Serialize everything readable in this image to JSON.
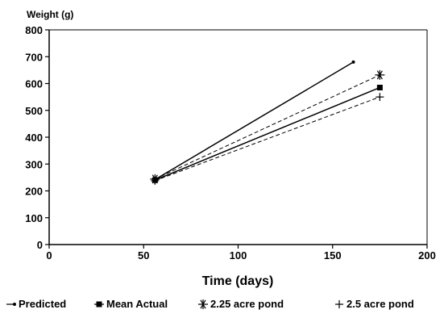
{
  "chart_data": {
    "type": "line",
    "title": "",
    "ylabel": "Weight (g)",
    "xlabel": "Time (days)",
    "xlim": [
      0,
      200
    ],
    "ylim": [
      0,
      800
    ],
    "xticks": [
      0,
      50,
      100,
      150,
      200
    ],
    "yticks": [
      0,
      100,
      200,
      300,
      400,
      500,
      600,
      700,
      800
    ],
    "grid": false,
    "legend_position": "bottom",
    "series": [
      {
        "name": "Predicted",
        "x": [
          56,
          161
        ],
        "y": [
          242,
          680
        ],
        "marker": "dot",
        "dash": "solid"
      },
      {
        "name": "Mean Actual",
        "x": [
          56,
          175
        ],
        "y": [
          240,
          585
        ],
        "marker": "square",
        "dash": "solid"
      },
      {
        "name": "2.25 acre pond",
        "x": [
          56,
          175
        ],
        "y": [
          244,
          632
        ],
        "marker": "asterisk",
        "dash": "dashed"
      },
      {
        "name": "2.5 acre pond",
        "x": [
          56,
          175
        ],
        "y": [
          238,
          550
        ],
        "marker": "plus",
        "dash": "dashed"
      }
    ]
  }
}
